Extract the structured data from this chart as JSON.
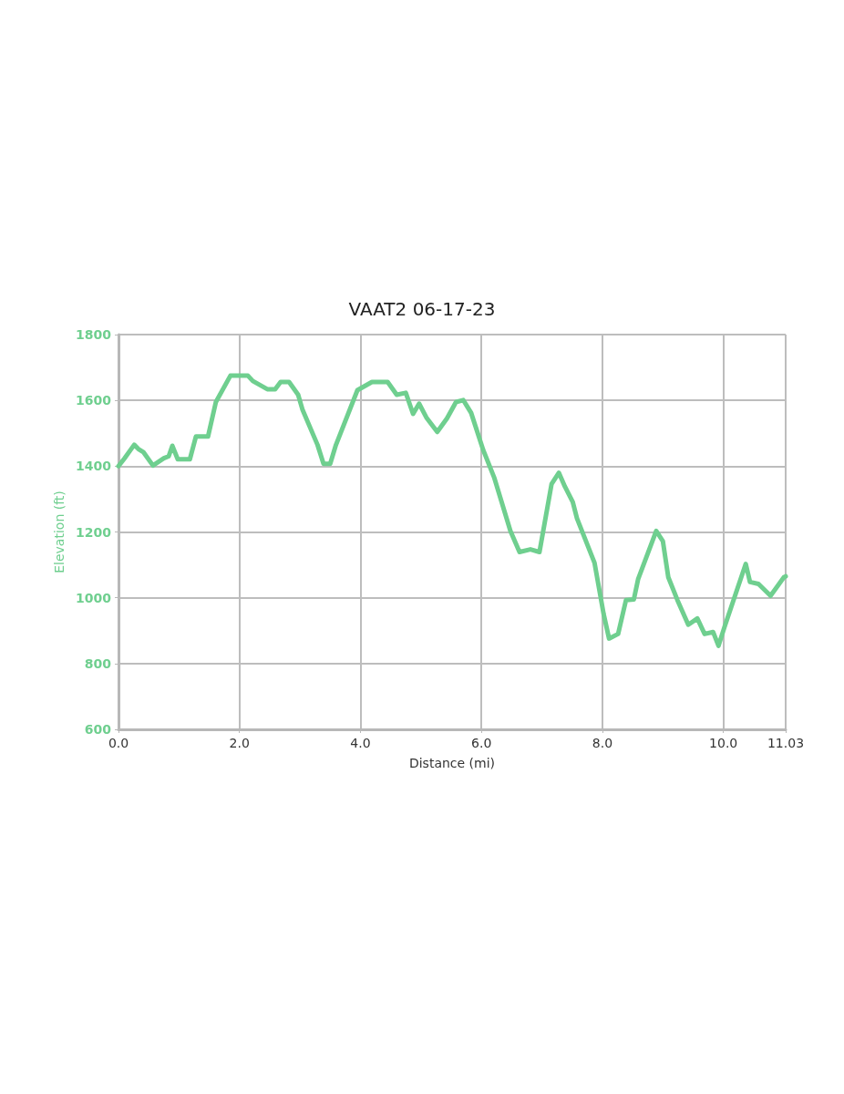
{
  "chart_data": {
    "type": "line",
    "title": "VAAT2 06-17-23",
    "xlabel": "Distance (mi)",
    "ylabel": "Elevation (ft)",
    "xlim": [
      0,
      11.03
    ],
    "ylim": [
      600,
      1800
    ],
    "xticks": [
      {
        "value": 0,
        "label": "0.0"
      },
      {
        "value": 2,
        "label": "2.0"
      },
      {
        "value": 4,
        "label": "4.0"
      },
      {
        "value": 6,
        "label": "6.0"
      },
      {
        "value": 8,
        "label": "8.0"
      },
      {
        "value": 10,
        "label": "10.0"
      },
      11.03
    ],
    "yticks": [
      600,
      800,
      1000,
      1200,
      1400,
      1600,
      1800
    ],
    "grid": true,
    "series": [
      {
        "color": "#6fcf8f",
        "x": [
          0,
          0.1,
          0.26,
          0.33,
          0.41,
          0.57,
          0.75,
          0.83,
          0.89,
          0.98,
          1.18,
          1.28,
          1.48,
          1.61,
          1.85,
          2.14,
          2.22,
          2.46,
          2.59,
          2.68,
          2.82,
          2.97,
          3.04,
          3.29,
          3.39,
          3.5,
          3.59,
          3.95,
          4.19,
          4.45,
          4.6,
          4.75,
          4.87,
          4.97,
          5.09,
          5.27,
          5.43,
          5.58,
          5.7,
          5.83,
          6.03,
          6.21,
          6.48,
          6.63,
          6.81,
          6.96,
          7.16,
          7.28,
          7.38,
          7.51,
          7.58,
          7.87,
          8.02,
          8.11,
          8.26,
          8.39,
          8.52,
          8.59,
          8.89,
          9.0,
          9.09,
          9.24,
          9.42,
          9.57,
          9.69,
          9.83,
          9.92,
          10.02,
          10.37,
          10.44,
          10.58,
          10.78,
          11.0,
          11.03
        ],
        "values": [
          1400,
          1424,
          1465,
          1452,
          1443,
          1402,
          1424,
          1430,
          1462,
          1421,
          1421,
          1490,
          1490,
          1595,
          1675,
          1675,
          1659,
          1634,
          1634,
          1656,
          1656,
          1617,
          1573,
          1465,
          1407,
          1407,
          1462,
          1631,
          1656,
          1656,
          1617,
          1623,
          1559,
          1590,
          1548,
          1504,
          1545,
          1595,
          1601,
          1562,
          1449,
          1366,
          1203,
          1139,
          1147,
          1139,
          1346,
          1380,
          1338,
          1291,
          1241,
          1106,
          951,
          876,
          890,
          993,
          995,
          1056,
          1203,
          1172,
          1062,
          993,
          918,
          937,
          890,
          896,
          854,
          912,
          1103,
          1048,
          1042,
          1006,
          1062,
          1065
        ]
      }
    ]
  }
}
